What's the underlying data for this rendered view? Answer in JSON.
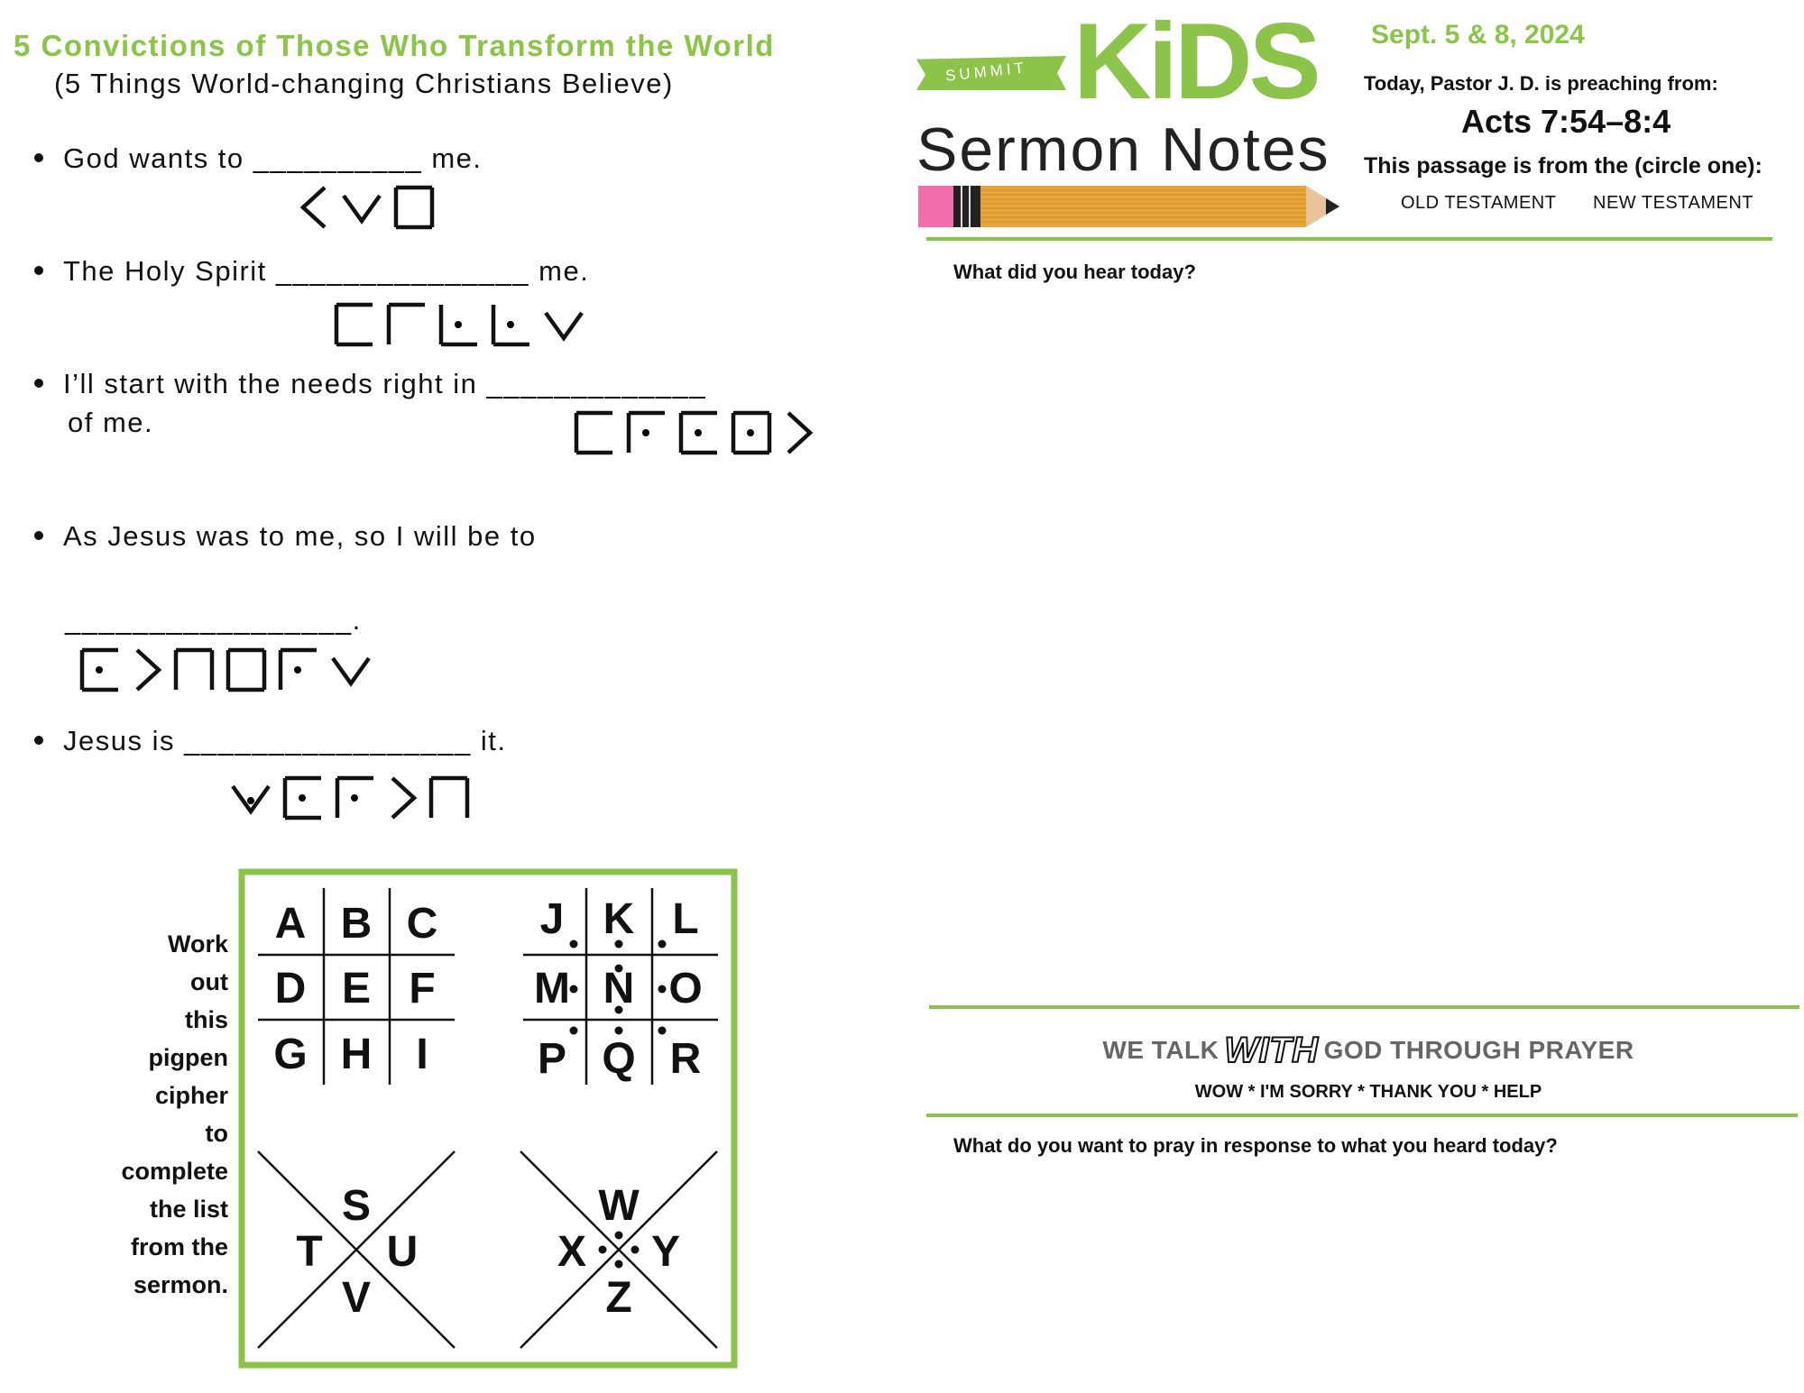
{
  "worksheet": {
    "title": "5 Convictions of Those Who Transform the World",
    "subtitle": "(5 Things World-changing Christians Believe)",
    "sentences": [
      {
        "pre": "God wants to",
        "blank": "__________",
        "post": "me.",
        "cipher_glyphs": [
          "U",
          "S",
          "E"
        ]
      },
      {
        "pre": "The Holy Spirit",
        "blank": "_______________",
        "post": "me.",
        "cipher_glyphs": [
          "F",
          "I",
          "L",
          "L",
          "S"
        ]
      },
      {
        "pre": "I’ll start with the needs right in",
        "blank": "_____________",
        "post": "of me.",
        "cipher_glyphs": [
          "F",
          "R",
          "O",
          "N",
          "T"
        ]
      },
      {
        "pre": "As Jesus was to me, so I will be to",
        "blank": "_________________.",
        "post": "",
        "cipher_glyphs": [
          "O",
          "T",
          "H",
          "E",
          "R",
          "S"
        ]
      },
      {
        "pre": "Jesus is",
        "blank": "_________________",
        "post": "it.",
        "cipher_glyphs": [
          "W",
          "O",
          "R",
          "T",
          "H"
        ]
      }
    ],
    "instructions": [
      "Work",
      "out",
      "this",
      "pigpen",
      "cipher",
      "to",
      "complete",
      "the list",
      "from the",
      "sermon."
    ],
    "cipher_key": {
      "grid1": [
        "A",
        "B",
        "C",
        "D",
        "E",
        "F",
        "G",
        "H",
        "I"
      ],
      "grid2": [
        "J",
        "K",
        "L",
        "M",
        "N",
        "O",
        "P",
        "Q",
        "R"
      ],
      "x1": [
        "S",
        "T",
        "U",
        "V"
      ],
      "x2": [
        "W",
        "X",
        "Y",
        "Z"
      ]
    }
  },
  "header": {
    "logo_banner": "SUMMIT",
    "logo_main": "KiDS",
    "logo_sub": "Sermon Notes",
    "date": "Sept. 5 & 8, 2024",
    "pastor_line": "Today, Pastor J. D.  is preaching from:",
    "passage": "Acts 7:54–8:4",
    "circle_prompt": "This passage is from the (circle one):",
    "options": [
      "OLD TESTAMENT",
      "NEW TESTAMENT"
    ]
  },
  "notes": {
    "hear_prompt": "What did you hear today?",
    "prayer_banner_pre": "WE TALK",
    "prayer_banner_with": "WITH",
    "prayer_banner_post": "GOD THROUGH PRAYER",
    "prayer_steps": "WOW * I'M SORRY * THANK YOU * HELP",
    "pray_prompt": "What do you want to pray in response to what you heard today?"
  },
  "colors": {
    "accent": "#8cc34b",
    "eraser": "#f06ea9",
    "pencil": "#e8a53c"
  }
}
